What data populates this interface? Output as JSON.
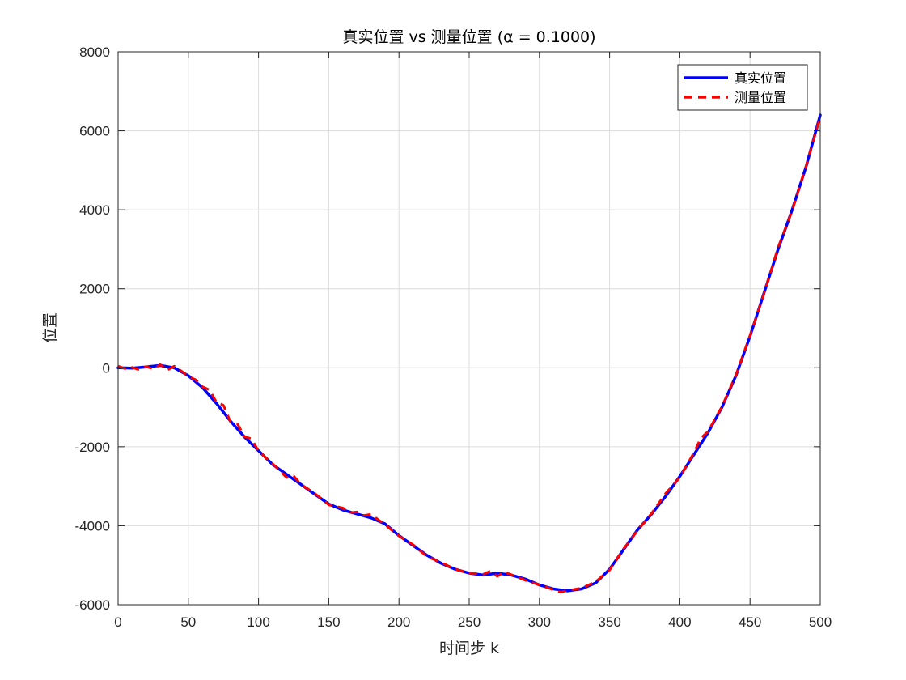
{
  "chart_data": {
    "type": "line",
    "title": "真实位置 vs 测量位置 (α = 0.1000)",
    "xlabel": "时间步 k",
    "ylabel": "位置",
    "xlim": [
      0,
      500
    ],
    "ylim": [
      -6000,
      8000
    ],
    "xticks": [
      0,
      50,
      100,
      150,
      200,
      250,
      300,
      350,
      400,
      450,
      500
    ],
    "yticks": [
      -6000,
      -4000,
      -2000,
      0,
      2000,
      4000,
      6000,
      8000
    ],
    "grid": true,
    "legend_position": "top-right",
    "series": [
      {
        "name": "真实位置",
        "color": "#0000ff",
        "style": "solid",
        "x": [
          0,
          10,
          20,
          30,
          40,
          50,
          60,
          70,
          80,
          90,
          100,
          110,
          120,
          130,
          140,
          150,
          160,
          170,
          180,
          190,
          200,
          210,
          220,
          230,
          240,
          250,
          260,
          270,
          280,
          290,
          300,
          310,
          320,
          330,
          340,
          350,
          360,
          370,
          380,
          390,
          400,
          410,
          420,
          430,
          440,
          450,
          460,
          470,
          480,
          490,
          500
        ],
        "y": [
          0,
          -10,
          20,
          60,
          0,
          -200,
          -500,
          -900,
          -1350,
          -1750,
          -2100,
          -2450,
          -2700,
          -2950,
          -3200,
          -3450,
          -3600,
          -3700,
          -3800,
          -3950,
          -4250,
          -4500,
          -4750,
          -4950,
          -5100,
          -5200,
          -5250,
          -5200,
          -5250,
          -5350,
          -5500,
          -5600,
          -5650,
          -5600,
          -5450,
          -5100,
          -4600,
          -4100,
          -3700,
          -3250,
          -2750,
          -2200,
          -1650,
          -1000,
          -200,
          800,
          1900,
          3000,
          4000,
          5100,
          6400
        ]
      },
      {
        "name": "测量位置",
        "color": "#ff0000",
        "style": "dashed",
        "x": [
          0,
          5,
          10,
          15,
          20,
          25,
          30,
          35,
          40,
          45,
          50,
          55,
          60,
          65,
          70,
          75,
          80,
          85,
          90,
          95,
          100,
          110,
          120,
          125,
          130,
          140,
          150,
          160,
          165,
          170,
          175,
          180,
          190,
          200,
          210,
          220,
          230,
          240,
          250,
          260,
          265,
          270,
          275,
          280,
          290,
          300,
          310,
          315,
          320,
          330,
          340,
          350,
          360,
          370,
          380,
          390,
          400,
          410,
          415,
          420,
          430,
          440,
          450,
          460,
          470,
          480,
          490,
          500
        ],
        "y": [
          40,
          -20,
          10,
          -50,
          30,
          -30,
          80,
          -60,
          40,
          -80,
          -220,
          -300,
          -480,
          -560,
          -870,
          -950,
          -1370,
          -1420,
          -1740,
          -1800,
          -2110,
          -2430,
          -2780,
          -2740,
          -2950,
          -3180,
          -3470,
          -3550,
          -3670,
          -3650,
          -3740,
          -3710,
          -3970,
          -4260,
          -4480,
          -4780,
          -4930,
          -5100,
          -5200,
          -5230,
          -5150,
          -5280,
          -5170,
          -5240,
          -5380,
          -5500,
          -5620,
          -5680,
          -5640,
          -5580,
          -5420,
          -5120,
          -4580,
          -4120,
          -3680,
          -3180,
          -2780,
          -2150,
          -1780,
          -1620,
          -980,
          -180,
          820,
          1880,
          3050,
          3980,
          5120,
          6350
        ]
      }
    ]
  }
}
